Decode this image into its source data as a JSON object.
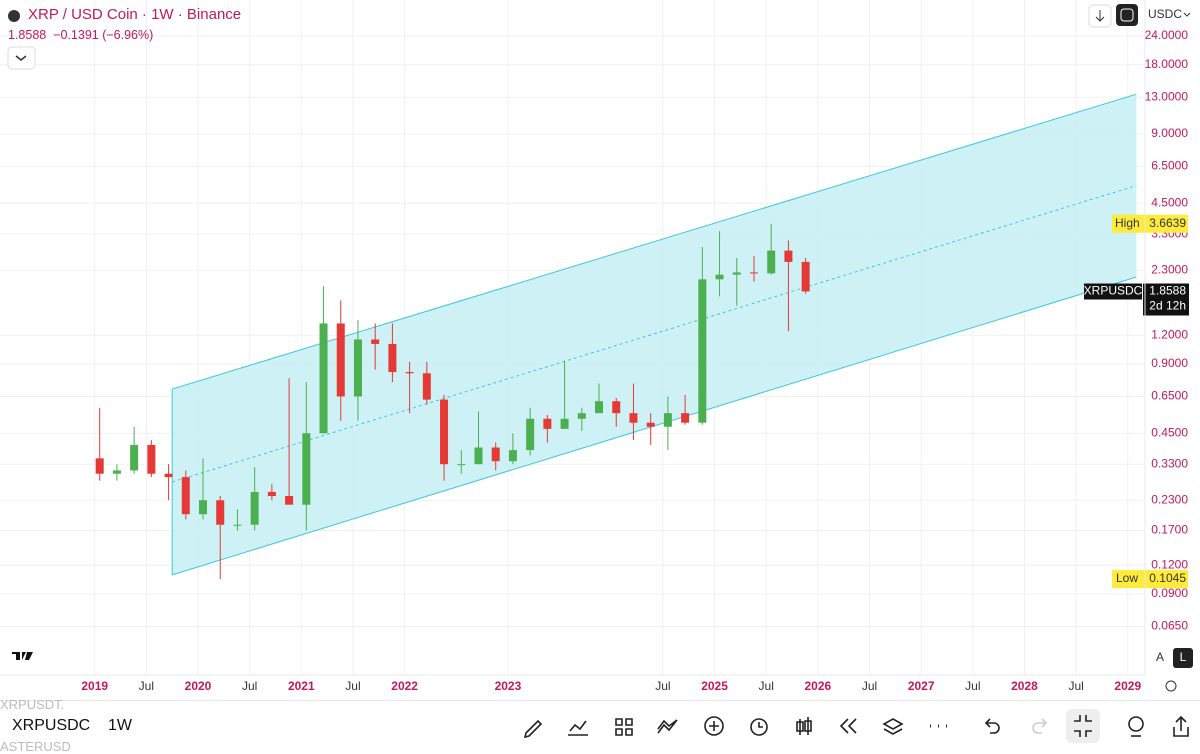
{
  "header": {
    "title": "XRP / USD Coin · 1W · Binance",
    "last_price": 1.8588,
    "change": "−0.1391 (−6.96%)",
    "currency": "USDC"
  },
  "chart_data": {
    "type": "candlestick",
    "log_scale": true,
    "grid": true,
    "color_up": "#4caf50",
    "color_down": "#e53935",
    "xlim": [
      "2018-02",
      "2029-03"
    ],
    "ylim": [
      0.04,
      34.4
    ],
    "xticks": [
      {
        "value": "2019-01",
        "label": "2019"
      },
      {
        "value": "2019-07",
        "label": "Jul"
      },
      {
        "value": "2020-01",
        "label": "2020"
      },
      {
        "value": "2020-07",
        "label": "Jul"
      },
      {
        "value": "2021-01",
        "label": "2021"
      },
      {
        "value": "2021-07",
        "label": "Jul"
      },
      {
        "value": "2022-01",
        "label": "2022"
      },
      {
        "value": "2023-01",
        "label": "2023"
      },
      {
        "value": "2024-07",
        "label": "Jul"
      },
      {
        "value": "2025-01",
        "label": "2025"
      },
      {
        "value": "2025-07",
        "label": "Jul"
      },
      {
        "value": "2026-01",
        "label": "2026"
      },
      {
        "value": "2026-07",
        "label": "Jul"
      },
      {
        "value": "2027-01",
        "label": "2027"
      },
      {
        "value": "2027-07",
        "label": "Jul"
      },
      {
        "value": "2028-01",
        "label": "2028"
      },
      {
        "value": "2028-07",
        "label": "Jul"
      },
      {
        "value": "2029-01",
        "label": "2029"
      }
    ],
    "yticks": [
      {
        "value": 24,
        "label": "24.0000"
      },
      {
        "value": 18,
        "label": "18.0000"
      },
      {
        "value": 13,
        "label": "13.0000"
      },
      {
        "value": 9,
        "label": "9.0000"
      },
      {
        "value": 6.5,
        "label": "6.5000"
      },
      {
        "value": 4.5,
        "label": "4.5000"
      },
      {
        "value": 3.3,
        "label": "3.3000"
      },
      {
        "value": 2.3,
        "label": "2.3000"
      },
      {
        "value": 1.2,
        "label": "1.2000"
      },
      {
        "value": 0.9,
        "label": "0.9000"
      },
      {
        "value": 0.65,
        "label": "0.6500"
      },
      {
        "value": 0.45,
        "label": "0.4500"
      },
      {
        "value": 0.33,
        "label": "0.3300"
      },
      {
        "value": 0.23,
        "label": "0.2300"
      },
      {
        "value": 0.17,
        "label": "0.1700"
      },
      {
        "value": 0.12,
        "label": "0.1200"
      },
      {
        "value": 0.09,
        "label": "0.0900"
      },
      {
        "value": 0.065,
        "label": "0.0650"
      }
    ],
    "x": [
      "2019-01",
      "2019-03",
      "2019-05",
      "2019-07",
      "2019-09",
      "2019-11",
      "2020-01",
      "2020-03",
      "2020-05",
      "2020-07",
      "2020-09",
      "2020-11",
      "2021-01",
      "2021-03",
      "2021-05",
      "2021-07",
      "2021-09",
      "2021-11",
      "2022-01",
      "2022-03",
      "2022-05",
      "2022-07",
      "2022-09",
      "2022-11",
      "2023-01",
      "2023-03",
      "2023-05",
      "2023-07",
      "2023-09",
      "2023-11",
      "2024-01",
      "2024-03",
      "2024-05",
      "2024-07",
      "2024-09",
      "2024-11",
      "2025-01",
      "2025-03",
      "2025-05",
      "2025-07",
      "2025-09",
      "2025-11"
    ],
    "open": [
      0.35,
      0.3,
      0.31,
      0.4,
      0.3,
      0.29,
      0.2,
      0.23,
      0.18,
      0.18,
      0.25,
      0.24,
      0.22,
      0.45,
      1.35,
      0.65,
      1.15,
      1.1,
      0.83,
      0.82,
      0.63,
      0.33,
      0.33,
      0.39,
      0.34,
      0.38,
      0.52,
      0.47,
      0.52,
      0.55,
      0.62,
      0.55,
      0.5,
      0.48,
      0.55,
      0.5,
      2.1,
      2.2,
      2.25,
      2.23,
      2.8,
      2.5
    ],
    "high": [
      0.58,
      0.33,
      0.48,
      0.42,
      0.33,
      0.31,
      0.35,
      0.24,
      0.21,
      0.32,
      0.27,
      0.78,
      0.75,
      1.96,
      1.7,
      1.4,
      1.35,
      1.35,
      0.92,
      0.92,
      0.66,
      0.38,
      0.56,
      0.41,
      0.45,
      0.58,
      0.54,
      0.93,
      0.58,
      0.74,
      0.64,
      0.74,
      0.55,
      0.65,
      0.66,
      2.9,
      3.4,
      2.6,
      2.65,
      3.6639,
      3.1,
      2.6
    ],
    "low": [
      0.28,
      0.28,
      0.3,
      0.29,
      0.23,
      0.19,
      0.19,
      0.1045,
      0.17,
      0.17,
      0.23,
      0.23,
      0.17,
      0.45,
      0.51,
      0.51,
      0.85,
      0.75,
      0.55,
      0.6,
      0.28,
      0.3,
      0.33,
      0.31,
      0.33,
      0.36,
      0.41,
      0.47,
      0.46,
      0.55,
      0.48,
      0.42,
      0.4,
      0.38,
      0.49,
      0.49,
      1.77,
      1.61,
      2.05,
      2.2,
      1.25,
      1.82
    ],
    "close": [
      0.3,
      0.31,
      0.4,
      0.3,
      0.29,
      0.2,
      0.23,
      0.18,
      0.18,
      0.25,
      0.24,
      0.22,
      0.45,
      1.35,
      0.65,
      1.15,
      1.1,
      0.83,
      0.82,
      0.63,
      0.33,
      0.33,
      0.39,
      0.34,
      0.38,
      0.52,
      0.47,
      0.52,
      0.55,
      0.62,
      0.55,
      0.5,
      0.48,
      0.55,
      0.5,
      2.1,
      2.2,
      2.25,
      2.23,
      2.8,
      2.5,
      1.86
    ],
    "channel": {
      "x": [
        "2019-10",
        "2029-02"
      ],
      "upper": [
        0.7,
        13.4
      ],
      "lower": [
        0.109,
        2.15
      ],
      "color": "#3cc8dc",
      "fill": "#c9eff4"
    },
    "markers": {
      "high": {
        "label": "High",
        "value": 3.6639
      },
      "low": {
        "label": "Low",
        "value": 0.1045
      },
      "last": {
        "symbol": "XRPUSDC",
        "countdown": "2d 12h"
      }
    }
  },
  "scale_buttons": {
    "auto": "A",
    "log": "L"
  },
  "footer": {
    "symbol": "XRPUSDC",
    "interval": "1W",
    "watchlist": [
      "XRPUSDT.",
      "ASTERUSD"
    ]
  }
}
